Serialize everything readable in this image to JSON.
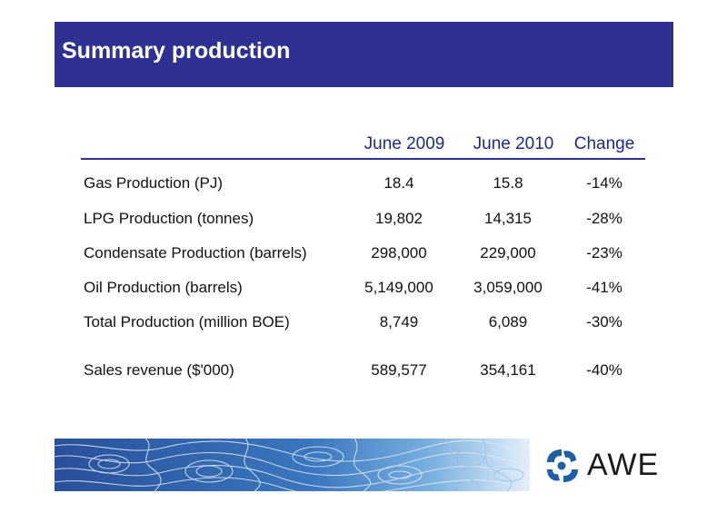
{
  "slide": {
    "title": "Summary production"
  },
  "table": {
    "columns": [
      "June 2009",
      "June 2010",
      "Change"
    ],
    "rows": [
      {
        "label": "Gas Production (PJ)",
        "v2009": "18.4",
        "v2010": "15.8",
        "change": "-14%"
      },
      {
        "label": "LPG Production (tonnes)",
        "v2009": "19,802",
        "v2010": "14,315",
        "change": "-28%"
      },
      {
        "label": "Condensate Production (barrels)",
        "v2009": "298,000",
        "v2010": "229,000",
        "change": "-23%"
      },
      {
        "label": "Oil Production (barrels)",
        "v2009": "5,149,000",
        "v2010": "3,059,000",
        "change": "-41%"
      },
      {
        "label": "Total Production (million BOE)",
        "v2009": "8,749",
        "v2010": "6,089",
        "change": "-30%"
      },
      {
        "label": "Sales revenue ($'000)",
        "v2009": "589,577",
        "v2010": "354,161",
        "change": "-40%"
      }
    ]
  },
  "footer": {
    "logo_text": "AWE"
  },
  "colors": {
    "title_bar": "#2e3192",
    "header_text": "#1e2b8c",
    "band_dark": "#1d3f8a",
    "band_light": "#eaf3fb",
    "logo_blue": "#1f5fa8"
  }
}
